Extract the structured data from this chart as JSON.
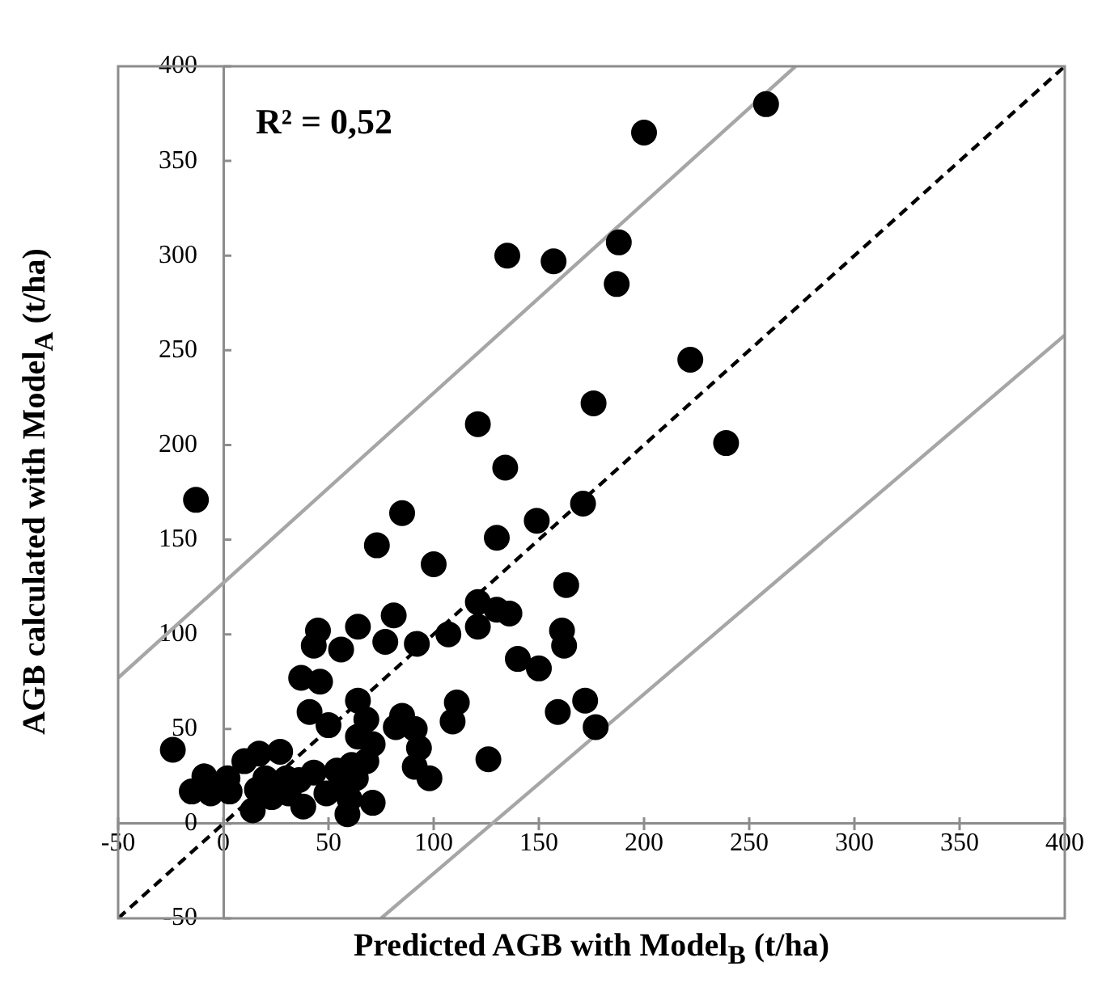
{
  "chart_data": {
    "type": "scatter",
    "xlabel": "Predicted AGB with Model$_{B}$ (t/ha)",
    "ylabel": "AGB calculated with Model$_{A}$ (t/ha)",
    "annotations": [
      "R² = 0,52"
    ],
    "xlim": [
      -50,
      400
    ],
    "ylim": [
      -50,
      400
    ],
    "xticks": [
      -50,
      0,
      50,
      100,
      150,
      200,
      250,
      300,
      350,
      400
    ],
    "yticks": [
      -50,
      0,
      50,
      100,
      150,
      200,
      250,
      300,
      350,
      400
    ],
    "grid": false,
    "legend": false,
    "marker": "circle",
    "series": [
      {
        "type": "scatter",
        "color": "#000000",
        "x": [
          135,
          157,
          121,
          134,
          -13,
          258,
          200,
          188,
          187,
          222,
          176,
          239,
          171,
          163,
          161,
          162,
          150,
          159,
          172,
          177,
          85,
          73,
          100,
          130,
          149,
          121,
          130,
          136,
          121,
          107,
          81,
          64,
          77,
          92,
          56,
          45,
          43,
          37,
          46,
          140,
          41,
          50,
          64,
          68,
          64,
          71,
          68,
          61,
          54,
          36,
          30,
          63,
          55,
          49,
          85,
          82,
          91,
          93,
          91,
          98,
          111,
          109,
          126,
          60,
          59,
          71,
          38,
          14,
          16,
          20,
          17,
          10,
          27,
          23,
          31,
          -24,
          -9,
          -15,
          2,
          3,
          -6,
          43
        ],
        "values": [
          300,
          297,
          211,
          188,
          171,
          380,
          365,
          307,
          285,
          245,
          222,
          201,
          169,
          126,
          102,
          94,
          82,
          59,
          65,
          51,
          164,
          147,
          137,
          151,
          160,
          117,
          113,
          111,
          104,
          100,
          110,
          104,
          96,
          95,
          92,
          102,
          94,
          77,
          75,
          87,
          59,
          52,
          65,
          55,
          46,
          42,
          33,
          31,
          28,
          23,
          24,
          24,
          19,
          16,
          57,
          51,
          50,
          40,
          30,
          24,
          64,
          54,
          34,
          13,
          5,
          11,
          9,
          7,
          18,
          24,
          37,
          33,
          38,
          14,
          16,
          39,
          25,
          17,
          24,
          17,
          16,
          27
        ]
      },
      {
        "type": "line",
        "color": "#000000",
        "line_style": "dashed",
        "marker": "none",
        "x": [
          -50,
          400
        ],
        "values": [
          -50,
          400
        ]
      },
      {
        "type": "line",
        "color": "#a6a6a6",
        "line_style": "solid",
        "marker": "none",
        "x": [
          -50,
          272
        ],
        "values": [
          77,
          400
        ]
      },
      {
        "type": "line",
        "color": "#a6a6a6",
        "line_style": "solid",
        "marker": "none",
        "x": [
          75,
          400
        ],
        "values": [
          -50,
          258
        ]
      }
    ]
  }
}
